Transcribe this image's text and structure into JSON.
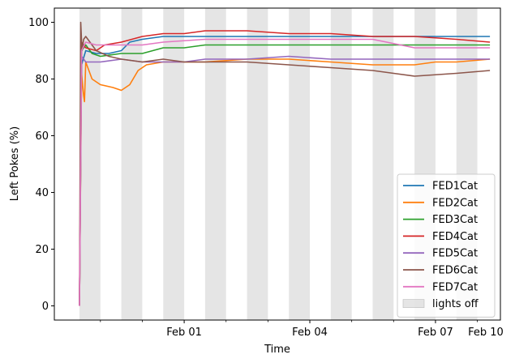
{
  "chart_data": {
    "type": "line",
    "xlabel": "Time",
    "ylabel": "Left Pokes (%)",
    "x_unit": "days",
    "xlim": [
      -0.6,
      10.05
    ],
    "ylim": [
      -5,
      105
    ],
    "x_ticks": [
      {
        "value": 2.5,
        "label": "Feb 01"
      },
      {
        "value": 5.5,
        "label": "Feb 04"
      },
      {
        "value": 8.5,
        "label": "Feb 07"
      },
      {
        "value": 11.2,
        "label": "Feb 10"
      }
    ],
    "y_ticks": [
      0,
      20,
      40,
      60,
      80,
      100
    ],
    "lights_off": [
      [
        0.0,
        0.5
      ],
      [
        1.0,
        1.5
      ],
      [
        2.0,
        2.5
      ],
      [
        3.0,
        3.5
      ],
      [
        4.0,
        4.5
      ],
      [
        5.0,
        5.5
      ],
      [
        6.0,
        6.5
      ],
      [
        7.0,
        7.5
      ],
      [
        8.0,
        8.5
      ],
      [
        9.0,
        9.5
      ]
    ],
    "legend_position": "lower right",
    "series": [
      {
        "name": "FED1Cat",
        "color": "#1f77b4",
        "points": [
          [
            0,
            0
          ],
          [
            0.05,
            85
          ],
          [
            0.15,
            90
          ],
          [
            0.4,
            89
          ],
          [
            0.7,
            89
          ],
          [
            1,
            90
          ],
          [
            1.2,
            93
          ],
          [
            1.5,
            94
          ],
          [
            2,
            95
          ],
          [
            3,
            95
          ],
          [
            4,
            95
          ],
          [
            5,
            95
          ],
          [
            6,
            95
          ],
          [
            7,
            95
          ],
          [
            8,
            95
          ],
          [
            9,
            95
          ],
          [
            9.8,
            95
          ]
        ]
      },
      {
        "name": "FED2Cat",
        "color": "#ff7f0e",
        "points": [
          [
            0,
            0
          ],
          [
            0.05,
            82
          ],
          [
            0.1,
            74
          ],
          [
            0.12,
            72
          ],
          [
            0.15,
            86
          ],
          [
            0.3,
            80
          ],
          [
            0.5,
            78
          ],
          [
            0.8,
            77
          ],
          [
            1,
            76
          ],
          [
            1.2,
            78
          ],
          [
            1.4,
            83
          ],
          [
            1.6,
            85
          ],
          [
            2,
            86
          ],
          [
            2.5,
            86
          ],
          [
            3,
            86
          ],
          [
            4,
            87
          ],
          [
            5,
            87
          ],
          [
            6,
            86
          ],
          [
            7,
            85
          ],
          [
            8,
            85
          ],
          [
            8.5,
            86
          ],
          [
            9,
            86
          ],
          [
            9.8,
            87
          ]
        ]
      },
      {
        "name": "FED3Cat",
        "color": "#2ca02c",
        "points": [
          [
            0,
            0
          ],
          [
            0.05,
            90
          ],
          [
            0.15,
            92
          ],
          [
            0.3,
            89
          ],
          [
            0.5,
            88
          ],
          [
            1,
            89
          ],
          [
            1.5,
            89
          ],
          [
            2,
            91
          ],
          [
            2.5,
            91
          ],
          [
            3,
            92
          ],
          [
            4,
            92
          ],
          [
            5,
            92
          ],
          [
            6,
            92
          ],
          [
            7,
            92
          ],
          [
            8,
            92
          ],
          [
            9,
            92
          ],
          [
            9.8,
            92
          ]
        ]
      },
      {
        "name": "FED4Cat",
        "color": "#d62728",
        "points": [
          [
            0,
            0
          ],
          [
            0.05,
            93
          ],
          [
            0.15,
            91
          ],
          [
            0.4,
            90
          ],
          [
            0.6,
            92
          ],
          [
            1,
            93
          ],
          [
            1.5,
            95
          ],
          [
            2,
            96
          ],
          [
            2.5,
            96
          ],
          [
            3,
            97
          ],
          [
            4,
            97
          ],
          [
            5,
            96
          ],
          [
            6,
            96
          ],
          [
            7,
            95
          ],
          [
            8,
            95
          ],
          [
            9,
            94
          ],
          [
            9.8,
            93
          ]
        ]
      },
      {
        "name": "FED5Cat",
        "color": "#9467bd",
        "points": [
          [
            0,
            0
          ],
          [
            0.05,
            88
          ],
          [
            0.15,
            86
          ],
          [
            0.3,
            86
          ],
          [
            0.5,
            86
          ],
          [
            1,
            87
          ],
          [
            1.5,
            86
          ],
          [
            2,
            86
          ],
          [
            2.5,
            86
          ],
          [
            3,
            87
          ],
          [
            4,
            87
          ],
          [
            5,
            88
          ],
          [
            6,
            87
          ],
          [
            7,
            87
          ],
          [
            8,
            87
          ],
          [
            9,
            87
          ],
          [
            9.8,
            87
          ]
        ]
      },
      {
        "name": "FED6Cat",
        "color": "#8c564b",
        "points": [
          [
            0,
            0
          ],
          [
            0.03,
            100
          ],
          [
            0.06,
            90
          ],
          [
            0.1,
            94
          ],
          [
            0.15,
            95
          ],
          [
            0.25,
            93
          ],
          [
            0.4,
            90
          ],
          [
            0.7,
            88
          ],
          [
            1,
            87
          ],
          [
            1.5,
            86
          ],
          [
            2,
            87
          ],
          [
            2.5,
            86
          ],
          [
            3,
            86
          ],
          [
            4,
            86
          ],
          [
            5,
            85
          ],
          [
            6,
            84
          ],
          [
            7,
            83
          ],
          [
            7.5,
            82
          ],
          [
            8,
            81
          ],
          [
            9,
            82
          ],
          [
            9.8,
            83
          ]
        ]
      },
      {
        "name": "FED7Cat",
        "color": "#e377c2",
        "points": [
          [
            0,
            0
          ],
          [
            0.05,
            90
          ],
          [
            0.15,
            93
          ],
          [
            0.4,
            92
          ],
          [
            0.6,
            92
          ],
          [
            1,
            92
          ],
          [
            1.5,
            92
          ],
          [
            2,
            93
          ],
          [
            3,
            94
          ],
          [
            4,
            94
          ],
          [
            5,
            94
          ],
          [
            6,
            94
          ],
          [
            7,
            94
          ],
          [
            8,
            91
          ],
          [
            9,
            91
          ],
          [
            9.8,
            91
          ]
        ]
      }
    ],
    "legend_extra": {
      "name": "lights off",
      "color": "#d3d3d3"
    }
  }
}
